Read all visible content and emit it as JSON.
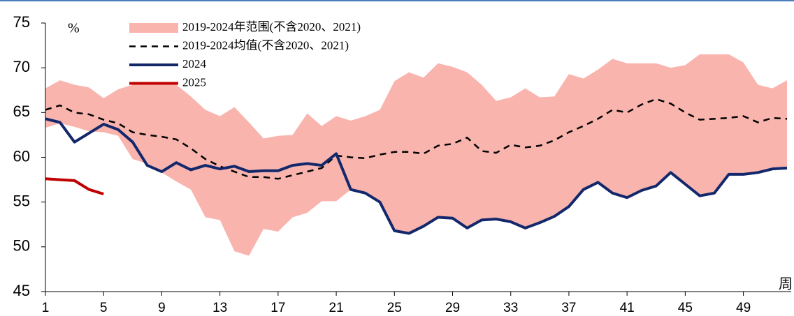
{
  "chart_data": {
    "type": "line",
    "y_label": "%",
    "x_label": "周",
    "x": [
      1,
      2,
      3,
      4,
      5,
      6,
      7,
      8,
      9,
      10,
      11,
      12,
      13,
      14,
      15,
      16,
      17,
      18,
      19,
      20,
      21,
      22,
      23,
      24,
      25,
      26,
      27,
      28,
      29,
      30,
      31,
      32,
      33,
      34,
      35,
      36,
      37,
      38,
      39,
      40,
      41,
      42,
      43,
      44,
      45,
      46,
      47,
      48,
      49,
      50,
      51,
      52
    ],
    "xlim": [
      1,
      52
    ],
    "xticks": [
      1,
      5,
      9,
      13,
      17,
      21,
      25,
      29,
      33,
      37,
      41,
      45,
      49
    ],
    "ylim": [
      45,
      75
    ],
    "yticks": [
      45,
      50,
      55,
      60,
      65,
      70,
      75
    ],
    "legend": "upper left",
    "series": [
      {
        "name": "2019-2024年范围(不含2020、2021)",
        "type": "band",
        "color": "#f9b4ae",
        "high": [
          67.7,
          68.6,
          68.1,
          67.8,
          66.6,
          67.6,
          68.1,
          68.4,
          68.4,
          68.1,
          66.8,
          65.3,
          64.6,
          65.6,
          63.9,
          62.1,
          62.4,
          62.5,
          64.9,
          63.5,
          64.6,
          64.1,
          64.6,
          65.3,
          68.5,
          69.5,
          68.9,
          70.5,
          70.1,
          69.5,
          68.1,
          66.3,
          66.7,
          67.7,
          66.7,
          66.8,
          69.3,
          68.8,
          69.8,
          71.0,
          70.5,
          70.5,
          70.5,
          70.0,
          70.3,
          71.5,
          71.5,
          71.5,
          70.6,
          68.1,
          67.7,
          68.6
        ],
        "low": [
          63.3,
          63.8,
          63.4,
          62.9,
          62.8,
          62.4,
          59.8,
          59.3,
          58.3,
          57.3,
          56.4,
          53.3,
          53.0,
          49.5,
          49.0,
          52.0,
          51.7,
          53.3,
          53.8,
          55.1,
          55.1,
          56.4,
          56.0,
          55.0,
          51.8,
          51.5,
          52.3,
          53.3,
          53.2,
          52.1,
          53.0,
          53.1,
          52.8,
          52.1,
          52.7,
          53.4,
          54.5,
          56.4,
          57.2,
          56.0,
          55.5,
          56.3,
          56.8,
          58.3,
          57.0,
          55.7,
          56.0,
          58.1,
          58.1,
          58.3,
          58.7,
          58.8
        ]
      },
      {
        "name": "2019-2024均值(不含2020、2021)",
        "type": "dashed",
        "color": "#000000",
        "values": [
          65.3,
          65.8,
          65.0,
          64.8,
          64.2,
          63.8,
          62.8,
          62.5,
          62.3,
          62.0,
          61.0,
          59.8,
          59.0,
          58.4,
          57.8,
          57.8,
          57.6,
          58.0,
          58.4,
          58.8,
          60.2,
          60.0,
          59.9,
          60.3,
          60.6,
          60.6,
          60.4,
          61.3,
          61.5,
          62.2,
          60.7,
          60.5,
          61.4,
          61.1,
          61.3,
          61.9,
          62.8,
          63.5,
          64.3,
          65.3,
          65.0,
          65.9,
          66.5,
          66.0,
          65.0,
          64.2,
          64.3,
          64.4,
          64.6,
          63.9,
          64.4,
          64.3
        ]
      },
      {
        "name": "2024",
        "type": "line",
        "color": "#13286b",
        "values": [
          64.3,
          63.9,
          61.7,
          62.7,
          63.7,
          63.1,
          61.7,
          59.1,
          58.4,
          59.4,
          58.6,
          59.1,
          58.7,
          59.0,
          58.4,
          58.5,
          58.5,
          59.1,
          59.3,
          59.1,
          60.4,
          56.4,
          56.0,
          55.0,
          51.8,
          51.5,
          52.3,
          53.3,
          53.2,
          52.1,
          53.0,
          53.1,
          52.8,
          52.1,
          52.7,
          53.4,
          54.5,
          56.4,
          57.2,
          56.0,
          55.5,
          56.3,
          56.8,
          58.3,
          57.0,
          55.7,
          56.0,
          58.1,
          58.1,
          58.3,
          58.7,
          58.8
        ]
      },
      {
        "name": "2025",
        "type": "line",
        "color": "#c00000",
        "values": [
          57.6,
          57.5,
          57.4,
          56.4,
          55.9,
          null,
          null,
          null,
          null,
          null,
          null,
          null,
          null,
          null,
          null,
          null,
          null,
          null,
          null,
          null,
          null,
          null,
          null,
          null,
          null,
          null,
          null,
          null,
          null,
          null,
          null,
          null,
          null,
          null,
          null,
          null,
          null,
          null,
          null,
          null,
          null,
          null,
          null,
          null,
          null,
          null,
          null,
          null,
          null,
          null,
          null,
          null
        ]
      }
    ]
  }
}
